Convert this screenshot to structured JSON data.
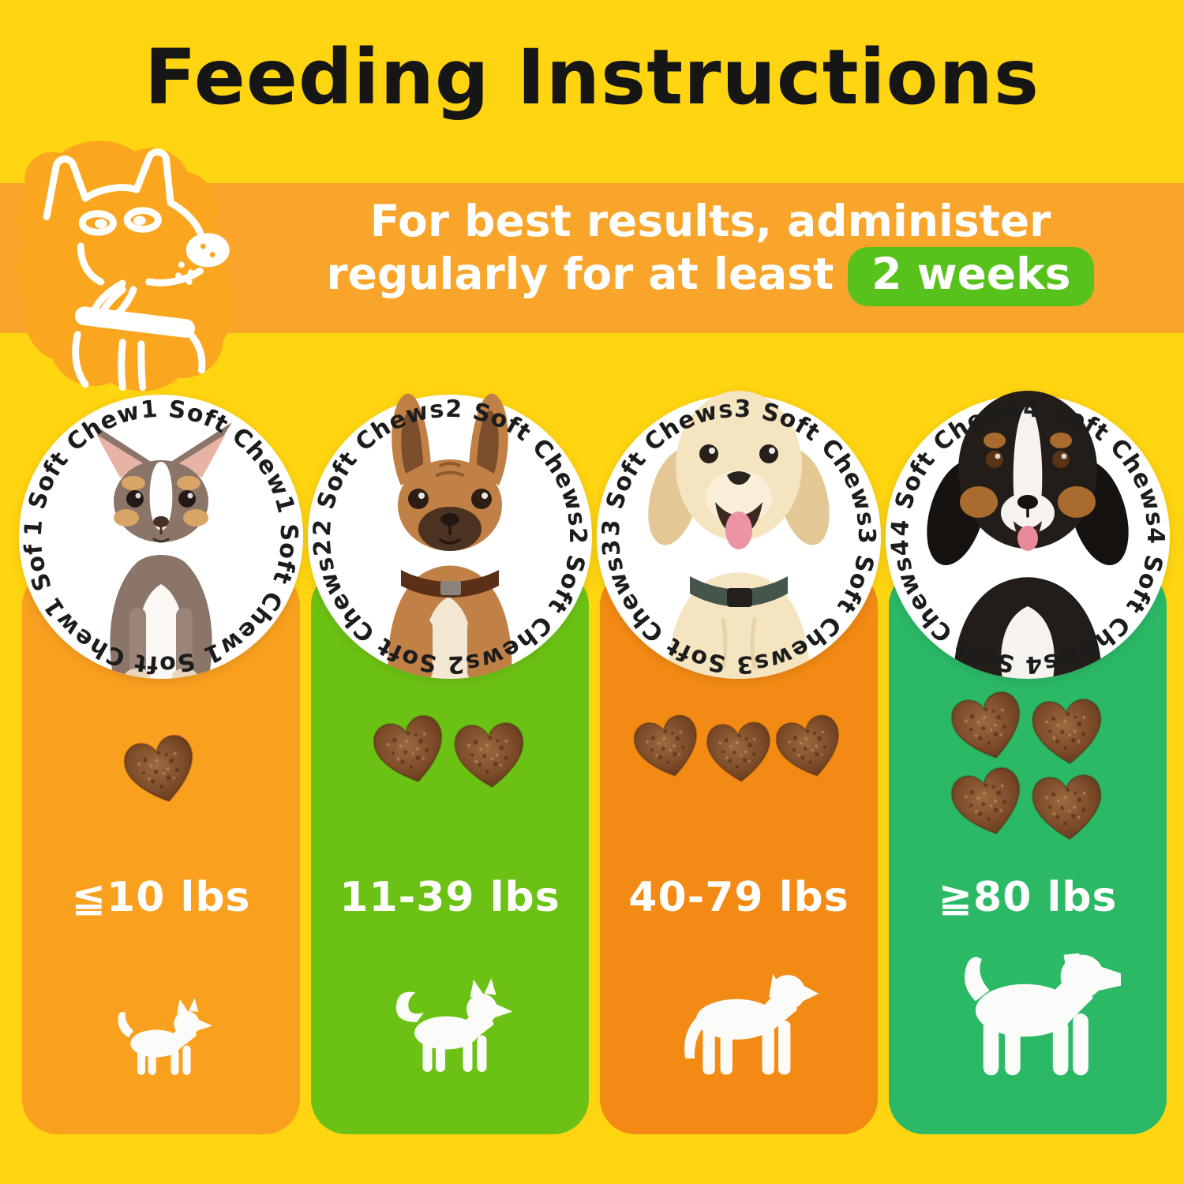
{
  "page": {
    "title": "Feeding Instructions",
    "background": "#FFD511"
  },
  "banner": {
    "line1": "For best results, administer",
    "line2": "regularly for at least",
    "badge": "2 weeks",
    "background": "#F9A52B",
    "badge_background": "#58C21D",
    "text_color": "#FFFFFF"
  },
  "mascot_icon": "sketched-dog-illustration",
  "chew_icon": "heart-shaped-soft-chew",
  "columns": [
    {
      "dose_label": "1 Soft Chew",
      "chew_count": 1,
      "weight_label": "≦10 lbs",
      "background": "#F9A01F",
      "photo": "chihuahua-puppy-photo",
      "silhouette_icon": "toy-dog-silhouette"
    },
    {
      "dose_label": "2 Soft Chews",
      "chew_count": 2,
      "weight_label": "11-39 lbs",
      "background": "#6CC214",
      "photo": "french-bulldog-photo",
      "silhouette_icon": "small-dog-silhouette"
    },
    {
      "dose_label": "3 Soft Chews",
      "chew_count": 3,
      "weight_label": "40-79 lbs",
      "background": "#F28A14",
      "photo": "golden-retriever-puppy-photo",
      "silhouette_icon": "medium-dog-silhouette"
    },
    {
      "dose_label": "4 Soft Chews",
      "chew_count": 4,
      "weight_label": "≧80 lbs",
      "background": "#2BB966",
      "photo": "bernese-mountain-dog-photo",
      "silhouette_icon": "large-dog-silhouette"
    }
  ]
}
